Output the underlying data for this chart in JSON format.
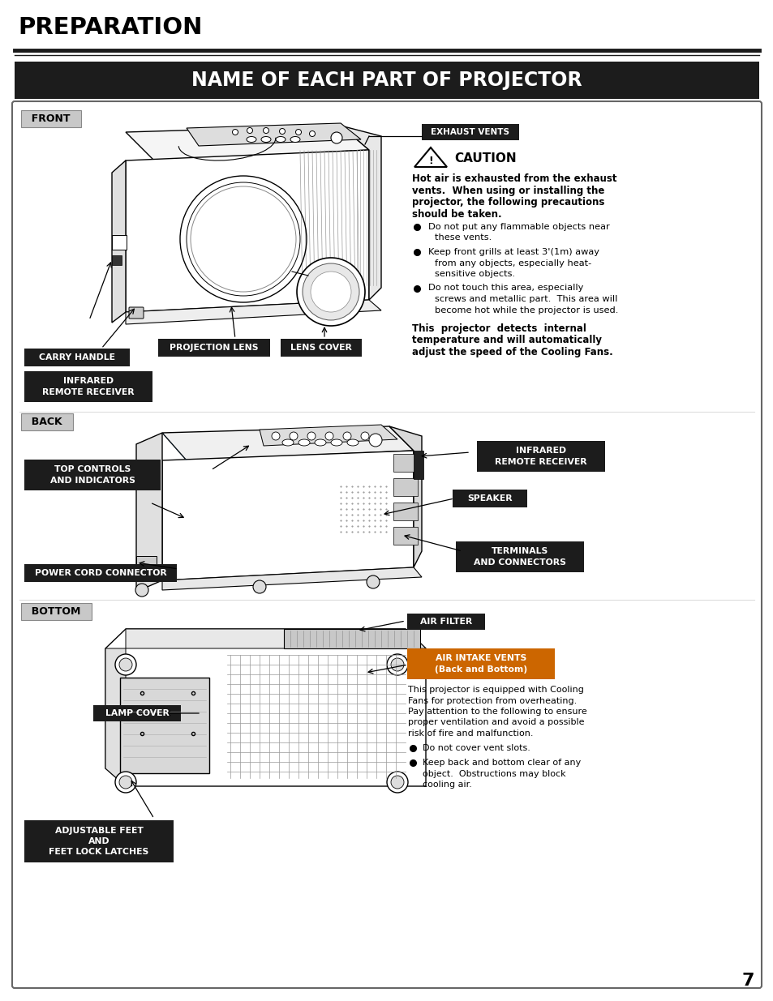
{
  "page_bg": "#ffffff",
  "page_num": "7",
  "title_main": "PREPARATION",
  "title_sub": "NAME OF EACH PART OF PROJECTOR",
  "title_main_color": "#000000",
  "title_sub_bg": "#1c1c1c",
  "title_sub_color": "#ffffff",
  "section_front_label": "FRONT",
  "section_back_label": "BACK",
  "section_bottom_label": "BOTTOM",
  "section_label_bg": "#c8c8c8",
  "caution_title": "CAUTION",
  "caution_body_line1": "Hot air is exhausted from the exhaust",
  "caution_body_line2": "vents.  When using or installing the",
  "caution_body_line3": "projector, the following precautions",
  "caution_body_line4": "should be taken.",
  "caution_bullets": [
    "Do not put any flammable objects near\nthese vents.",
    "Keep front grills at least 3'(1m) away\nfrom any objects, especially heat-\nsensitive objects.",
    "Do not touch this area, especially\nscrews and metallic part.  This area will\nbecome hot while the projector is used."
  ],
  "caution_footer_lines": [
    "This  projector  detects  internal",
    "temperature and will automatically",
    "adjust the speed of the Cooling Fans."
  ],
  "bottom_text_lines": [
    "This projector is equipped with Cooling",
    "Fans for protection from overheating.",
    "Pay attention to the following to ensure",
    "proper ventilation and avoid a possible",
    "risk of fire and malfunction."
  ],
  "bottom_bullets": [
    "Do not cover vent slots.",
    "Keep back and bottom clear of any\nobject.  Obstructions may block\ncooling air."
  ],
  "black_label_bg": "#1c1c1c",
  "black_label_fg": "#ffffff"
}
